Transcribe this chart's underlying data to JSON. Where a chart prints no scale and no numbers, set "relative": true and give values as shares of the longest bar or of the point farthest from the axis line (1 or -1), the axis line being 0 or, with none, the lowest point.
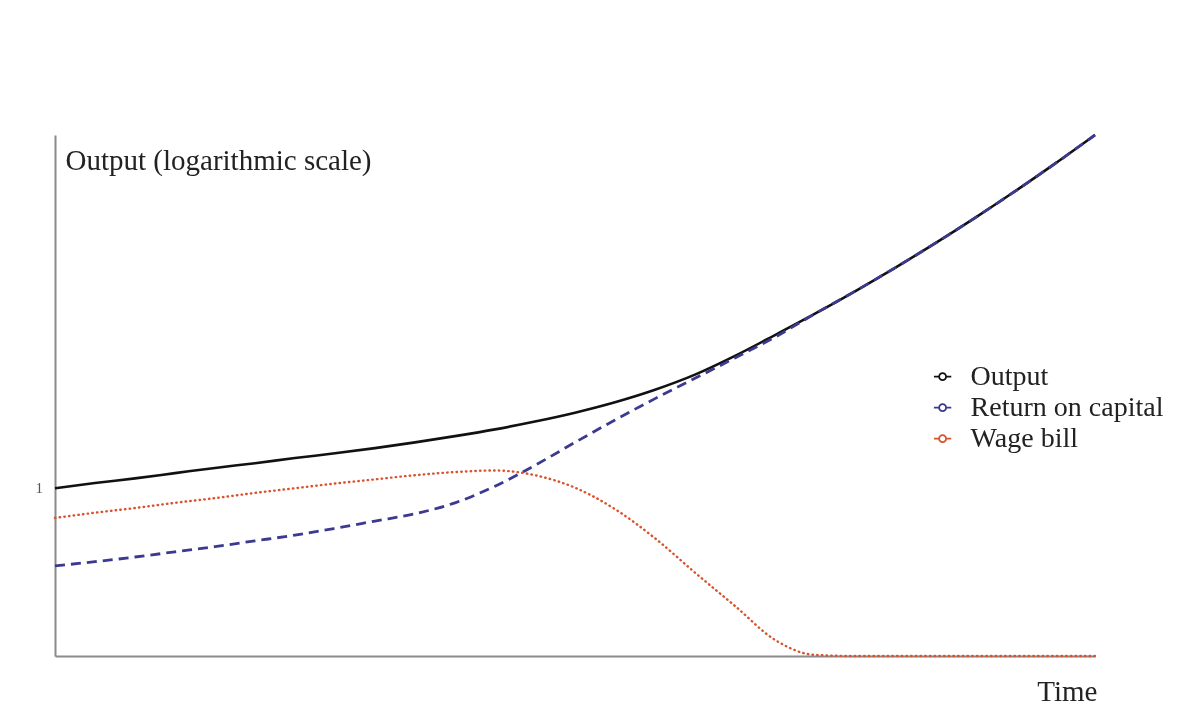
{
  "chart_data": {
    "type": "line",
    "relative": true,
    "xlabel": "Time",
    "ylabel": "Output (logarithmic scale)",
    "legend": "right",
    "categories": [
      null,
      null,
      null,
      null,
      null,
      null,
      null,
      null,
      null,
      null,
      null,
      null,
      null,
      null,
      null,
      null,
      null,
      null,
      null,
      null,
      null,
      null,
      null,
      null,
      null,
      null,
      null
    ],
    "series": [
      {
        "name": "Output",
        "color": "#111111",
        "line_style": "solid",
        "values": [
          0.322,
          0.332,
          0.341,
          0.351,
          0.361,
          0.37,
          0.38,
          0.389,
          0.399,
          0.41,
          0.422,
          0.435,
          0.45,
          0.467,
          0.487,
          0.511,
          0.54,
          0.576,
          0.616,
          0.657,
          0.7,
          0.745,
          0.792,
          0.841,
          0.892,
          0.945,
          1.0
        ]
      },
      {
        "name": "Return on capital",
        "color": "#3b3a90",
        "line_style": "dashed",
        "values": [
          0.173,
          0.181,
          0.19,
          0.2,
          0.21,
          0.221,
          0.232,
          0.245,
          0.259,
          0.273,
          0.294,
          0.326,
          0.366,
          0.41,
          0.453,
          0.494,
          0.533,
          0.572,
          0.612,
          0.657,
          0.7,
          0.745,
          0.792,
          0.841,
          0.892,
          0.945,
          1.0
        ]
      },
      {
        "name": "Wage bill",
        "color": "#d9532e",
        "line_style": "dotted",
        "values": [
          0.265,
          0.275,
          0.284,
          0.294,
          0.303,
          0.313,
          0.322,
          0.331,
          0.339,
          0.347,
          0.353,
          0.356,
          0.347,
          0.323,
          0.282,
          0.226,
          0.16,
          0.096,
          0.031,
          0.002,
          0,
          0,
          0,
          0,
          0,
          0,
          0
        ]
      }
    ],
    "annotations": [
      "1"
    ]
  }
}
